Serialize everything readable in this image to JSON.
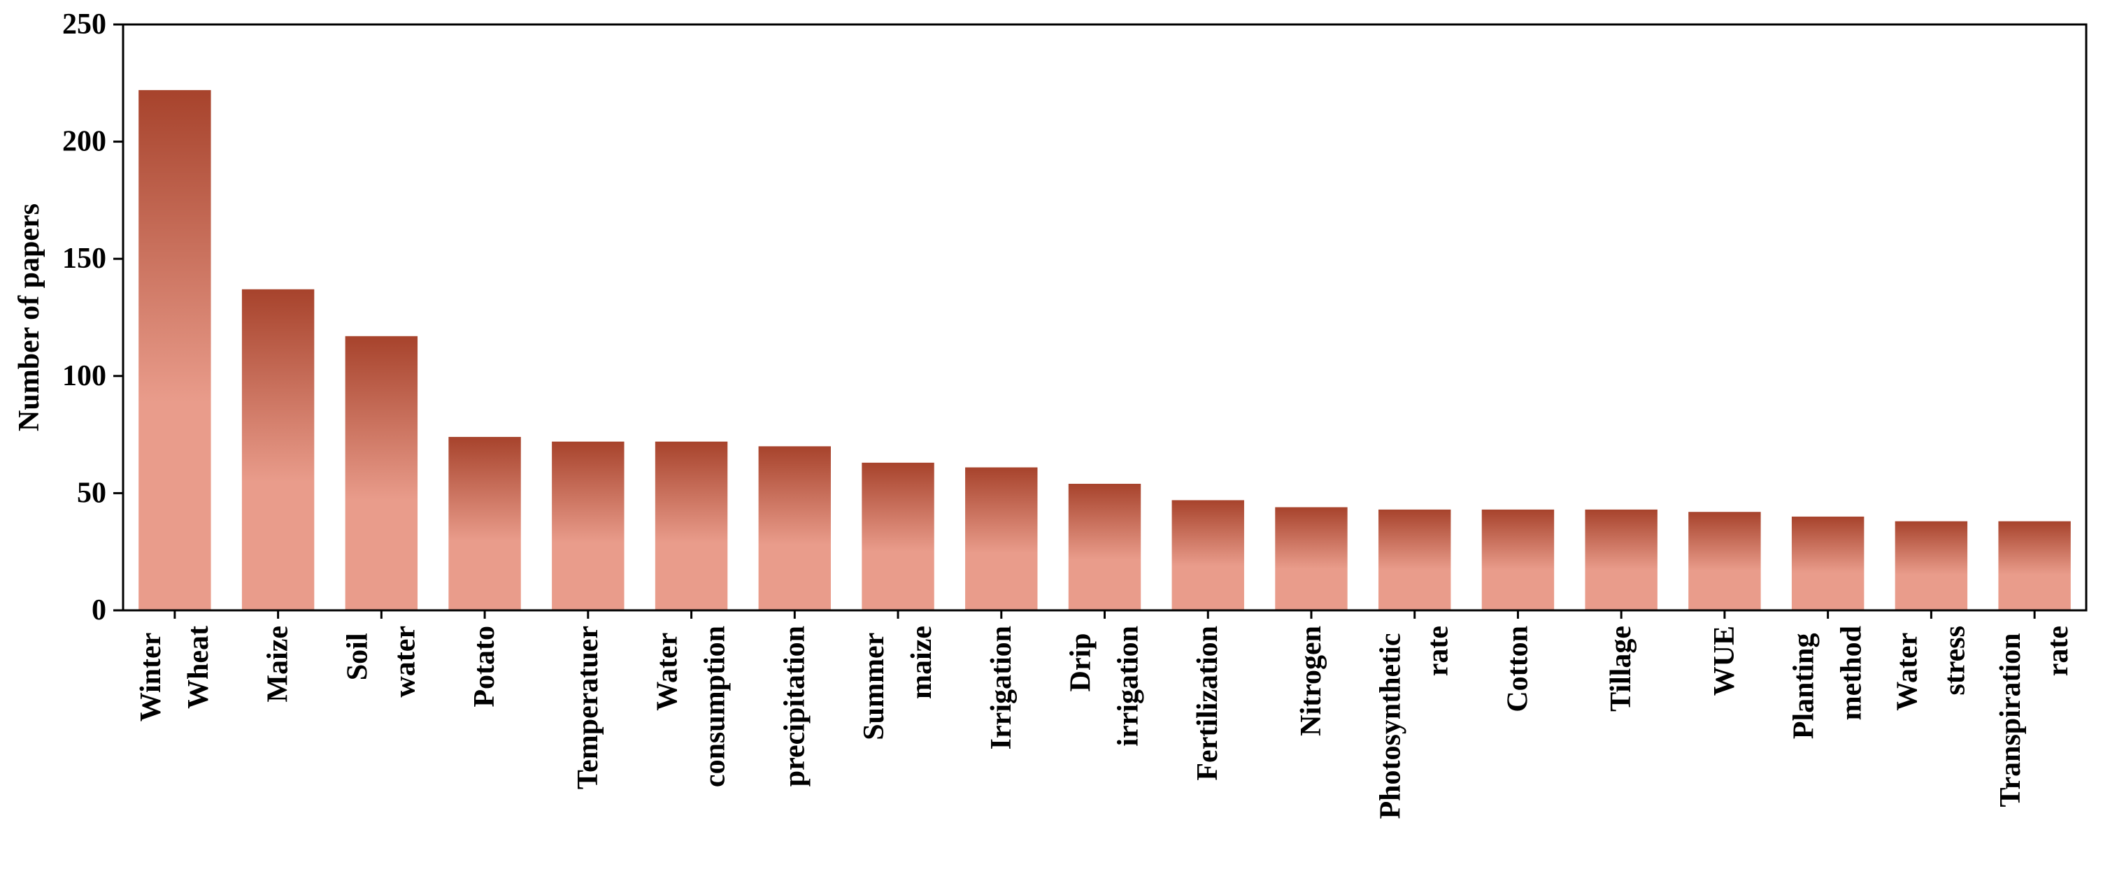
{
  "chart_data": {
    "type": "bar",
    "y_label": "Number of papers",
    "categories": [
      "Winter Wheat",
      "Maize",
      "Soil water",
      "Potato",
      "Temperatuer",
      "Water consumption",
      "precipitation",
      "Summer maize",
      "Irrigation",
      "Drip irrigation",
      "Fertilization",
      "Nitrogen",
      "Photosynthetic rate",
      "Cotton",
      "Tillage",
      "WUE",
      "Planting method",
      "Water stress",
      "Transpiration rate"
    ],
    "values": [
      222,
      137,
      117,
      74,
      72,
      72,
      70,
      63,
      61,
      54,
      47,
      44,
      43,
      43,
      43,
      42,
      40,
      38,
      38
    ],
    "gradient": [
      "#a7432c",
      "#e99c8b"
    ],
    "ylim": [
      0,
      250
    ],
    "yticks": [
      0,
      50,
      100,
      150,
      200,
      250
    ],
    "grid": false
  }
}
